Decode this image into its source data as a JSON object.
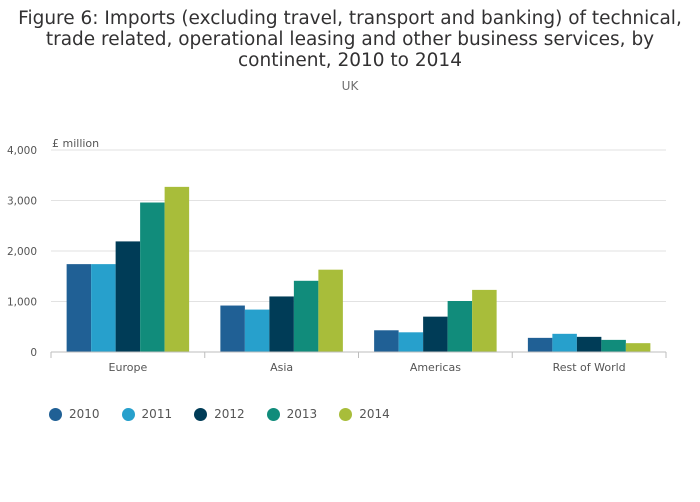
{
  "title_lines": [
    "Figure 6: Imports (excluding travel, transport and banking) of technical,",
    "trade related, operational leasing and other business services, by",
    "continent, 2010 to 2014"
  ],
  "subtitle": "UK",
  "chart_data": {
    "type": "bar",
    "title": "Figure 6: Imports (excluding travel, transport and banking) of technical, trade related, operational leasing and other business services, by continent, 2010 to 2014",
    "subtitle": "UK",
    "ylabel": "£ million",
    "xlabel": "",
    "ylim": [
      0,
      4000
    ],
    "yticks": [
      0,
      1000,
      2000,
      3000,
      4000
    ],
    "ytick_labels": [
      "0",
      "1,000",
      "2,000",
      "3,000",
      "4,000"
    ],
    "categories": [
      "Europe",
      "Asia",
      "Americas",
      "Rest of World"
    ],
    "series": [
      {
        "name": "2010",
        "color": "#206095",
        "values": [
          1740,
          920,
          430,
          280
        ]
      },
      {
        "name": "2011",
        "color": "#27a0cc",
        "values": [
          1740,
          840,
          390,
          360
        ]
      },
      {
        "name": "2012",
        "color": "#003c57",
        "values": [
          2190,
          1100,
          700,
          300
        ]
      },
      {
        "name": "2013",
        "color": "#118c7b",
        "values": [
          2960,
          1410,
          1010,
          240
        ]
      },
      {
        "name": "2014",
        "color": "#a8bd3a",
        "values": [
          3270,
          1630,
          1230,
          175
        ]
      }
    ],
    "legend_position": "bottom-left",
    "grid": true
  }
}
